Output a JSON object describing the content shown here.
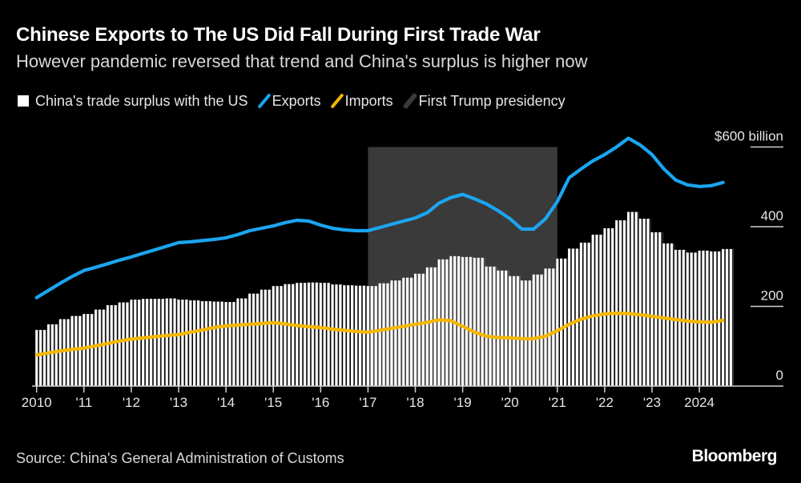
{
  "title": "Chinese Exports to The US Did Fall During First Trade War",
  "subtitle": "However pandemic reversed that trend and China's surplus is higher now",
  "legend": [
    {
      "label": "China's trade surplus with the US",
      "color": "#ffffff"
    },
    {
      "label": "Exports",
      "color": "#1ba5f0"
    },
    {
      "label": "Imports",
      "color": "#f5b700"
    },
    {
      "label": "First Trump presidency",
      "color": "#3a3a3a"
    }
  ],
  "source": "Source: China's General Administration of Customs",
  "logo": "Bloomberg",
  "chart_data": {
    "type": "bar+line",
    "title": "Chinese Exports to The US Did Fall During First Trade War",
    "ylabel": "$ billion",
    "ylim": [
      0,
      600
    ],
    "yticks": [
      {
        "value": 0,
        "label": "0"
      },
      {
        "value": 200,
        "label": "200"
      },
      {
        "value": 400,
        "label": "400"
      },
      {
        "value": 600,
        "label": "$600 billion"
      }
    ],
    "xticks": [
      {
        "year": 2010,
        "label": "2010"
      },
      {
        "year": 2011,
        "label": "'11"
      },
      {
        "year": 2012,
        "label": "'12"
      },
      {
        "year": 2013,
        "label": "'13"
      },
      {
        "year": 2014,
        "label": "'14"
      },
      {
        "year": 2015,
        "label": "'15"
      },
      {
        "year": 2016,
        "label": "'16"
      },
      {
        "year": 2017,
        "label": "'17"
      },
      {
        "year": 2018,
        "label": "'18"
      },
      {
        "year": 2019,
        "label": "'19"
      },
      {
        "year": 2020,
        "label": "'20"
      },
      {
        "year": 2021,
        "label": "'21"
      },
      {
        "year": 2022,
        "label": "'22"
      },
      {
        "year": 2023,
        "label": "'23"
      },
      {
        "year": 2024,
        "label": "2024"
      }
    ],
    "shaded_period": {
      "label": "First Trump presidency",
      "start": "2017-01",
      "end": "2021-01"
    },
    "x": [
      "2010-01",
      "2010-04",
      "2010-07",
      "2010-10",
      "2011-01",
      "2011-04",
      "2011-07",
      "2011-10",
      "2012-01",
      "2012-04",
      "2012-07",
      "2012-10",
      "2013-01",
      "2013-04",
      "2013-07",
      "2013-10",
      "2014-01",
      "2014-04",
      "2014-07",
      "2014-10",
      "2015-01",
      "2015-04",
      "2015-07",
      "2015-10",
      "2016-01",
      "2016-04",
      "2016-07",
      "2016-10",
      "2017-01",
      "2017-04",
      "2017-07",
      "2017-10",
      "2018-01",
      "2018-04",
      "2018-07",
      "2018-10",
      "2019-01",
      "2019-04",
      "2019-07",
      "2019-10",
      "2020-01",
      "2020-04",
      "2020-07",
      "2020-10",
      "2021-01",
      "2021-04",
      "2021-07",
      "2021-10",
      "2022-01",
      "2022-04",
      "2022-07",
      "2022-10",
      "2023-01",
      "2023-04",
      "2023-07",
      "2023-10",
      "2024-01",
      "2024-04",
      "2024-07"
    ],
    "series": [
      {
        "name": "China's trade surplus with the US",
        "kind": "bar",
        "color": "#ffffff",
        "values": [
          141,
          155,
          168,
          176,
          181,
          192,
          203,
          210,
          217,
          219,
          219,
          220,
          217,
          215,
          213,
          212,
          211,
          220,
          232,
          242,
          251,
          256,
          259,
          260,
          259,
          255,
          253,
          252,
          251,
          258,
          265,
          272,
          282,
          298,
          318,
          326,
          324,
          322,
          300,
          290,
          276,
          265,
          280,
          295,
          320,
          345,
          360,
          380,
          396,
          416,
          437,
          420,
          386,
          358,
          342,
          335,
          340,
          338,
          344
        ]
      },
      {
        "name": "Exports",
        "kind": "line",
        "color": "#1ba5f0",
        "values": [
          222,
          240,
          258,
          275,
          290,
          298,
          307,
          316,
          324,
          333,
          342,
          351,
          360,
          362,
          365,
          368,
          372,
          380,
          390,
          396,
          402,
          410,
          416,
          414,
          404,
          396,
          392,
          390,
          390,
          398,
          406,
          414,
          422,
          435,
          459,
          473,
          481,
          470,
          457,
          440,
          420,
          394,
          394,
          420,
          463,
          523,
          545,
          565,
          581,
          600,
          622,
          605,
          581,
          545,
          517,
          505,
          501,
          503,
          511
        ]
      },
      {
        "name": "Imports",
        "kind": "line",
        "color": "#f5b700",
        "values": [
          78,
          83,
          88,
          92,
          95,
          101,
          107,
          113,
          118,
          121,
          124,
          127,
          129,
          135,
          141,
          147,
          151,
          153,
          155,
          157,
          159,
          156,
          152,
          149,
          147,
          143,
          140,
          137,
          135,
          140,
          145,
          150,
          155,
          160,
          166,
          164,
          150,
          135,
          125,
          122,
          121,
          119,
          119,
          125,
          139,
          155,
          168,
          176,
          181,
          183,
          182,
          179,
          175,
          171,
          167,
          163,
          161,
          160,
          165
        ]
      }
    ],
    "grid": "right-side tick marks only",
    "legend_position": "top-left"
  }
}
